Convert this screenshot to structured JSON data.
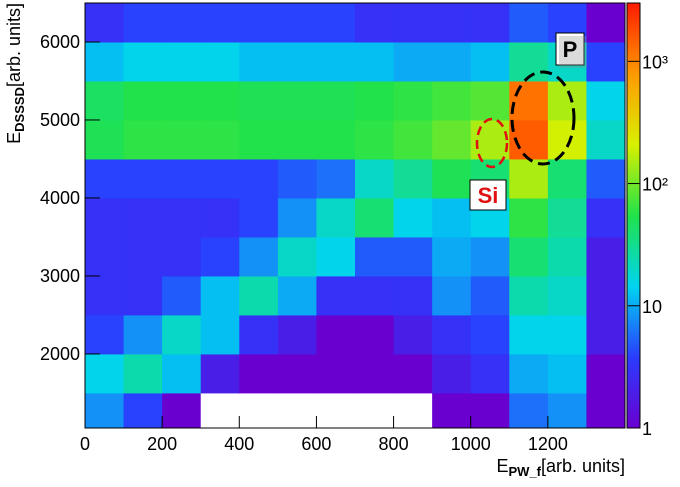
{
  "chart_data": {
    "type": "heatmap",
    "xlabel": {
      "main": "E",
      "sub": "PW_f",
      "unit": "[arb. units]"
    },
    "ylabel": {
      "main": "E",
      "sub": "DSSSD",
      "unit": "[arb. units]"
    },
    "xbins": [
      0,
      100,
      200,
      300,
      400,
      500,
      600,
      700,
      800,
      900,
      1000,
      1100,
      1200,
      1300,
      1400
    ],
    "ybins": [
      1050,
      1500,
      2000,
      2500,
      3000,
      3500,
      4000,
      4500,
      5000,
      5500,
      6000,
      6500
    ],
    "z": [
      [
        8,
        4,
        1,
        0,
        0,
        0,
        0,
        0,
        0,
        1,
        1,
        6,
        8,
        1
      ],
      [
        15,
        25,
        12,
        2,
        1,
        1,
        1,
        1,
        1,
        2,
        3,
        10,
        12,
        1
      ],
      [
        4,
        8,
        20,
        12,
        3,
        2,
        1,
        1,
        2,
        3,
        4,
        15,
        15,
        2
      ],
      [
        3,
        3,
        5,
        12,
        25,
        10,
        3,
        3,
        3,
        8,
        5,
        25,
        20,
        2
      ],
      [
        3,
        3,
        3,
        4,
        8,
        20,
        15,
        5,
        5,
        10,
        8,
        40,
        25,
        2
      ],
      [
        3,
        3,
        3,
        3,
        4,
        8,
        20,
        40,
        15,
        12,
        15,
        60,
        30,
        3
      ],
      [
        4,
        4,
        4,
        4,
        4,
        5,
        6,
        20,
        30,
        50,
        40,
        150,
        40,
        5
      ],
      [
        50,
        60,
        60,
        60,
        55,
        55,
        55,
        60,
        70,
        90,
        150,
        1500,
        200,
        20
      ],
      [
        45,
        55,
        55,
        55,
        50,
        50,
        50,
        55,
        60,
        70,
        80,
        1200,
        150,
        15
      ],
      [
        12,
        15,
        15,
        15,
        12,
        12,
        12,
        12,
        10,
        10,
        12,
        30,
        20,
        4
      ],
      [
        3,
        4,
        4,
        4,
        4,
        4,
        4,
        3,
        3,
        3,
        3,
        5,
        4,
        1
      ]
    ],
    "xlim": [
      0,
      1400
    ],
    "ylim": [
      1050,
      6500
    ],
    "zlim": [
      1,
      3000
    ],
    "zscale": "log",
    "xticks": [
      0,
      200,
      400,
      600,
      800,
      1000,
      1200
    ],
    "yticks": [
      2000,
      3000,
      4000,
      5000,
      6000
    ],
    "zticks": [
      1,
      10,
      {
        "value": 100,
        "label": "10²"
      },
      {
        "value": 1000,
        "label": "10³"
      }
    ],
    "colors": [
      "#6a00d0",
      "#2a3cff",
      "#00d4f0",
      "#20e24a",
      "#d8f000",
      "#ff9a00",
      "#ff1a00"
    ],
    "annotations": [
      {
        "text": "P"
      },
      {
        "text": "Si"
      }
    ]
  }
}
